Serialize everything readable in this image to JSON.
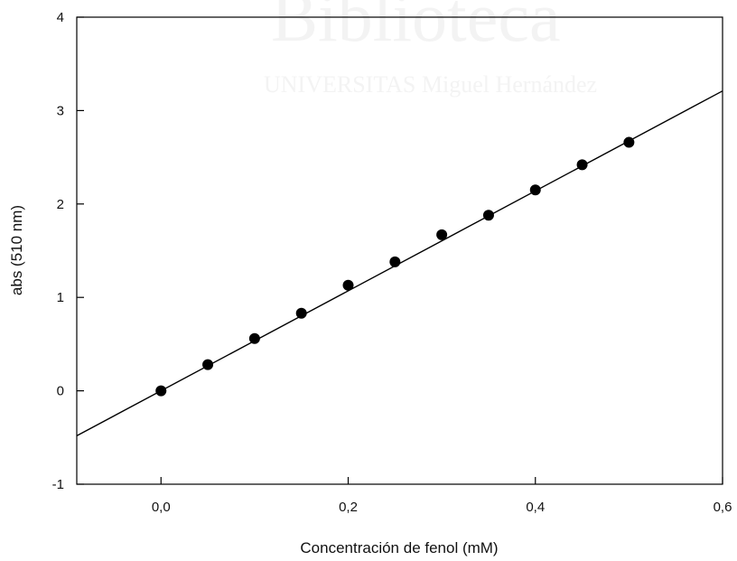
{
  "watermark": {
    "title": "Biblioteca",
    "subtitle": "UNIVERSITAS Miguel Hernández"
  },
  "chart_data": {
    "type": "scatter",
    "title": "",
    "xlabel": "Concentración de fenol (mM)",
    "ylabel": "abs (510 nm)",
    "xlim": [
      -0.09,
      0.6
    ],
    "ylim": [
      -1,
      4
    ],
    "x_ticks": [
      0.0,
      0.2,
      0.4,
      0.6
    ],
    "x_tick_labels": [
      "0,0",
      "0,2",
      "0,4",
      "0,6"
    ],
    "y_ticks": [
      -1,
      0,
      1,
      2,
      3,
      4
    ],
    "y_tick_labels": [
      "-1",
      "0",
      "1",
      "2",
      "3",
      "4"
    ],
    "grid": false,
    "legend": "none",
    "series": [
      {
        "x": [
          0.0,
          0.05,
          0.1,
          0.15,
          0.2,
          0.25,
          0.3,
          0.35,
          0.4,
          0.45,
          0.5
        ],
        "y": [
          0.0,
          0.28,
          0.56,
          0.83,
          1.13,
          1.38,
          1.67,
          1.88,
          2.15,
          2.42,
          2.66
        ],
        "marker": "filled-circle",
        "color": "#000000"
      }
    ],
    "fit_line": {
      "slope": 5.35,
      "intercept": 0.0,
      "x_range": [
        -0.09,
        0.6
      ],
      "color": "#000000"
    }
  }
}
